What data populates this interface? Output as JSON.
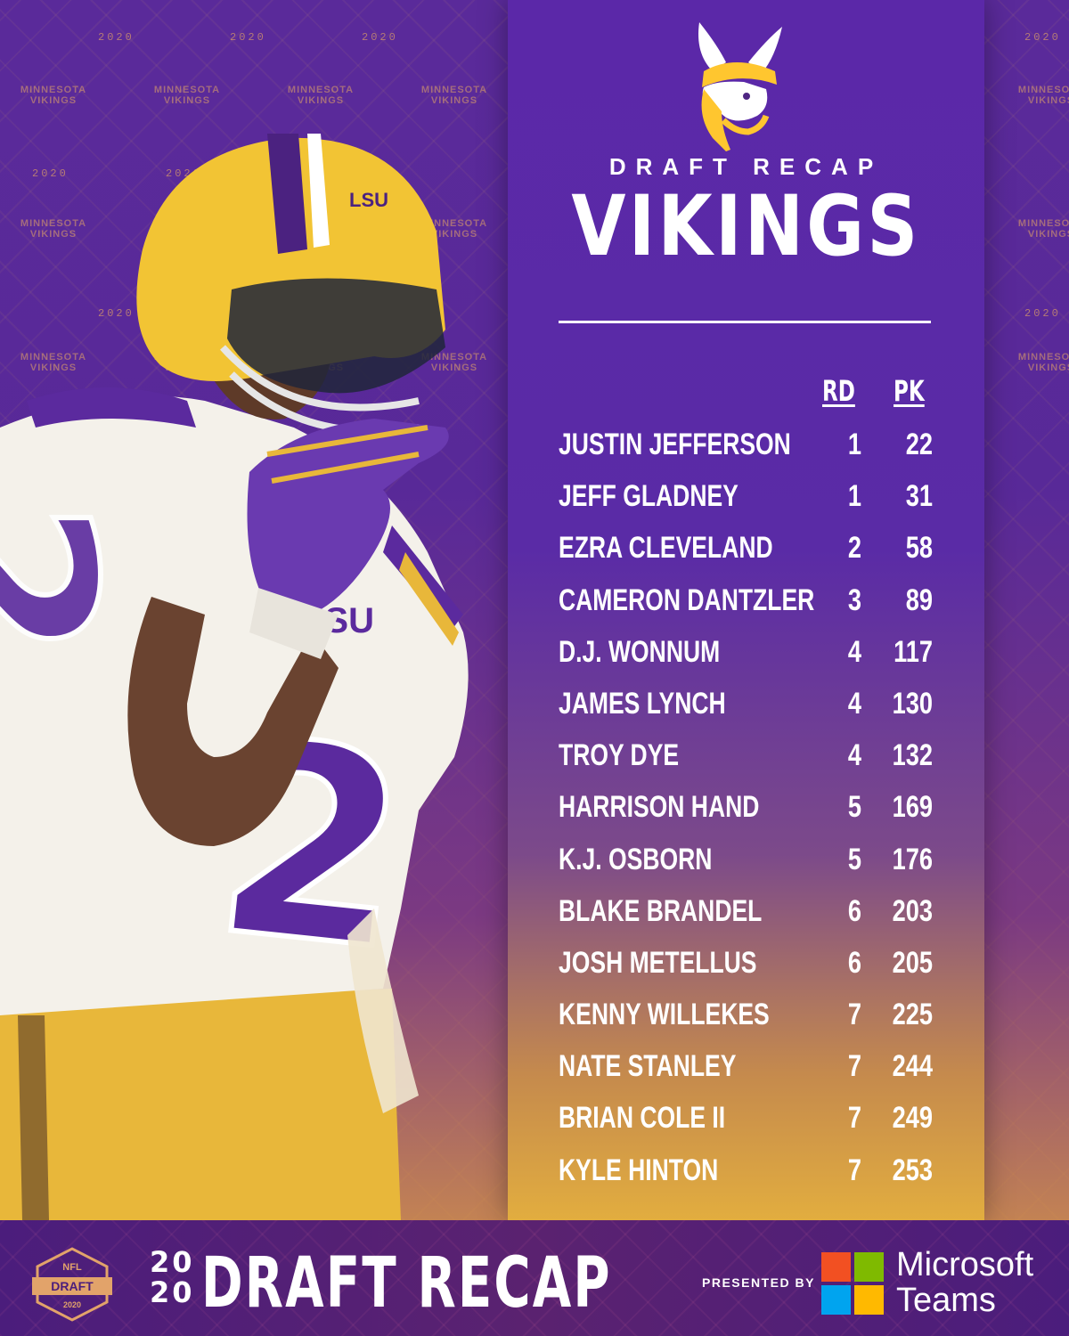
{
  "header": {
    "subtitle": "DRAFT RECAP",
    "team": "VIKINGS"
  },
  "background": {
    "tile_text": "MINNESOTA VIKINGS",
    "year": "2020",
    "badge": "DRAFT"
  },
  "table": {
    "columns": [
      "RD",
      "PK"
    ],
    "rows": [
      {
        "name": "JUSTIN JEFFERSON",
        "rd": "1",
        "pk": "22"
      },
      {
        "name": "JEFF GLADNEY",
        "rd": "1",
        "pk": "31"
      },
      {
        "name": "EZRA CLEVELAND",
        "rd": "2",
        "pk": "58"
      },
      {
        "name": "CAMERON DANTZLER",
        "rd": "3",
        "pk": "89"
      },
      {
        "name": "D.J. WONNUM",
        "rd": "4",
        "pk": "117"
      },
      {
        "name": "JAMES LYNCH",
        "rd": "4",
        "pk": "130"
      },
      {
        "name": "TROY DYE",
        "rd": "4",
        "pk": "132"
      },
      {
        "name": "HARRISON HAND",
        "rd": "5",
        "pk": "169"
      },
      {
        "name": "K.J. OSBORN",
        "rd": "5",
        "pk": "176"
      },
      {
        "name": "BLAKE BRANDEL",
        "rd": "6",
        "pk": "203"
      },
      {
        "name": "JOSH METELLUS",
        "rd": "6",
        "pk": "205"
      },
      {
        "name": "KENNY WILLEKES",
        "rd": "7",
        "pk": "225"
      },
      {
        "name": "NATE STANLEY",
        "rd": "7",
        "pk": "244"
      },
      {
        "name": "BRIAN COLE II",
        "rd": "7",
        "pk": "249"
      },
      {
        "name": "KYLE HINTON",
        "rd": "7",
        "pk": "253"
      }
    ]
  },
  "player": {
    "jersey_number": "2",
    "helmet_text": "LSU",
    "jersey_text": "LSU"
  },
  "footer": {
    "shield_top": "NFL",
    "shield_label": "DRAFT",
    "shield_year": "2020",
    "year_top": "20",
    "year_bottom": "20",
    "title": "DRAFT RECAP",
    "presented_by": "PRESENTED BY",
    "sponsor_line1": "Microsoft",
    "sponsor_line2": "Teams"
  },
  "colors": {
    "purple": "#4f2683",
    "gold": "#ffc62f",
    "ms_red": "#f25022",
    "ms_green": "#7fba00",
    "ms_blue": "#00a4ef",
    "ms_yellow": "#ffb900"
  }
}
